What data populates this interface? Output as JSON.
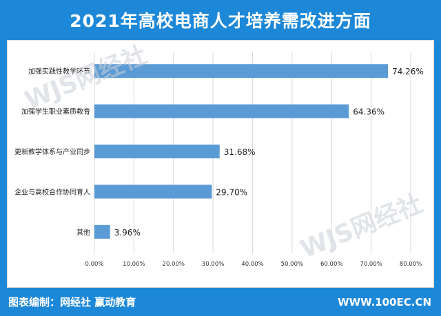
{
  "header": {
    "title": "2021年高校电商人才培养需改进方面"
  },
  "footer": {
    "credit": "图表编制：网经社  赢动教育",
    "site": "WWW.100EC.CN"
  },
  "watermark": {
    "text": "WJS网经社"
  },
  "colors": {
    "bar": "#5b9bd5",
    "header": "#1e88d8",
    "grid": "#d9d9d9"
  },
  "chart_data": {
    "type": "bar",
    "orientation": "horizontal",
    "categories": [
      "加强实践性教学环节",
      "加强学生职业素质教育",
      "更新教学体系与产业同步",
      "企业与高校合作协同育人",
      "其他"
    ],
    "values": [
      74.26,
      64.36,
      31.68,
      29.7,
      3.96
    ],
    "value_labels": [
      "74.26%",
      "64.36%",
      "31.68%",
      "29.70%",
      "3.96%"
    ],
    "xlim": [
      0,
      80
    ],
    "xticks": [
      "0.00%",
      "10.00%",
      "20.00%",
      "30.00%",
      "40.00%",
      "50.00%",
      "60.00%",
      "70.00%",
      "80.00%"
    ],
    "grid": true,
    "xlabel": "",
    "ylabel": ""
  }
}
